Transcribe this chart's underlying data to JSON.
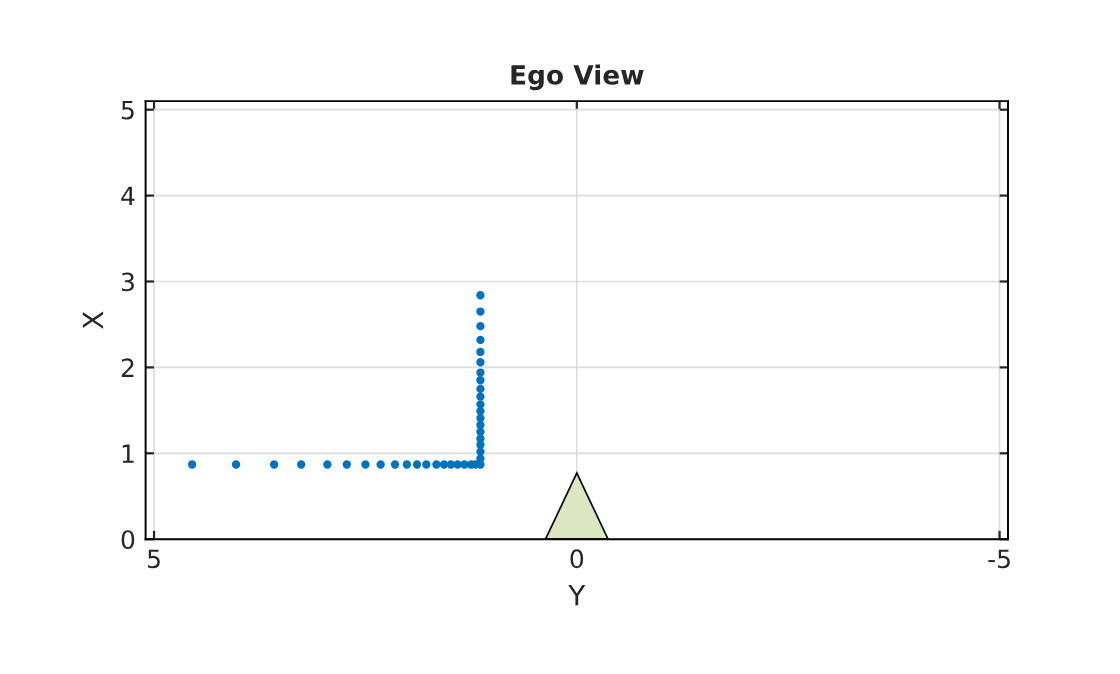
{
  "chart_data": {
    "type": "scatter",
    "title": "Ego View",
    "xlabel": "Y",
    "ylabel": "X",
    "xlim": [
      5.1,
      -5.1
    ],
    "ylim": [
      0,
      5.1
    ],
    "xticks": [
      5,
      0,
      -5
    ],
    "yticks": [
      0,
      1,
      2,
      3,
      4,
      5
    ],
    "grid": true,
    "series": [
      {
        "marker": "circle",
        "color": "#0072bd",
        "x": [
          4.55,
          4.03,
          3.58,
          3.26,
          2.95,
          2.72,
          2.5,
          2.32,
          2.15,
          2.01,
          1.89,
          1.78,
          1.66,
          1.57,
          1.49,
          1.41,
          1.33,
          1.25,
          1.2,
          1.14,
          1.14,
          1.14,
          1.14,
          1.14,
          1.14,
          1.14,
          1.14,
          1.14,
          1.14,
          1.14,
          1.14,
          1.14,
          1.14,
          1.14,
          1.14,
          1.14,
          1.14,
          1.14,
          1.14
        ],
        "values": [
          0.87,
          0.87,
          0.87,
          0.87,
          0.87,
          0.87,
          0.87,
          0.87,
          0.87,
          0.87,
          0.87,
          0.87,
          0.87,
          0.87,
          0.87,
          0.87,
          0.87,
          0.87,
          0.87,
          0.87,
          0.94,
          1.02,
          1.1,
          1.17,
          1.25,
          1.33,
          1.41,
          1.49,
          1.57,
          1.66,
          1.75,
          1.85,
          1.94,
          2.06,
          2.18,
          2.32,
          2.48,
          2.65,
          2.84
        ]
      },
      {
        "type": "area",
        "color": "#dce6c0",
        "x": [
          0.37,
          0,
          -0.37
        ],
        "values": [
          0,
          0.77,
          0
        ]
      }
    ]
  }
}
